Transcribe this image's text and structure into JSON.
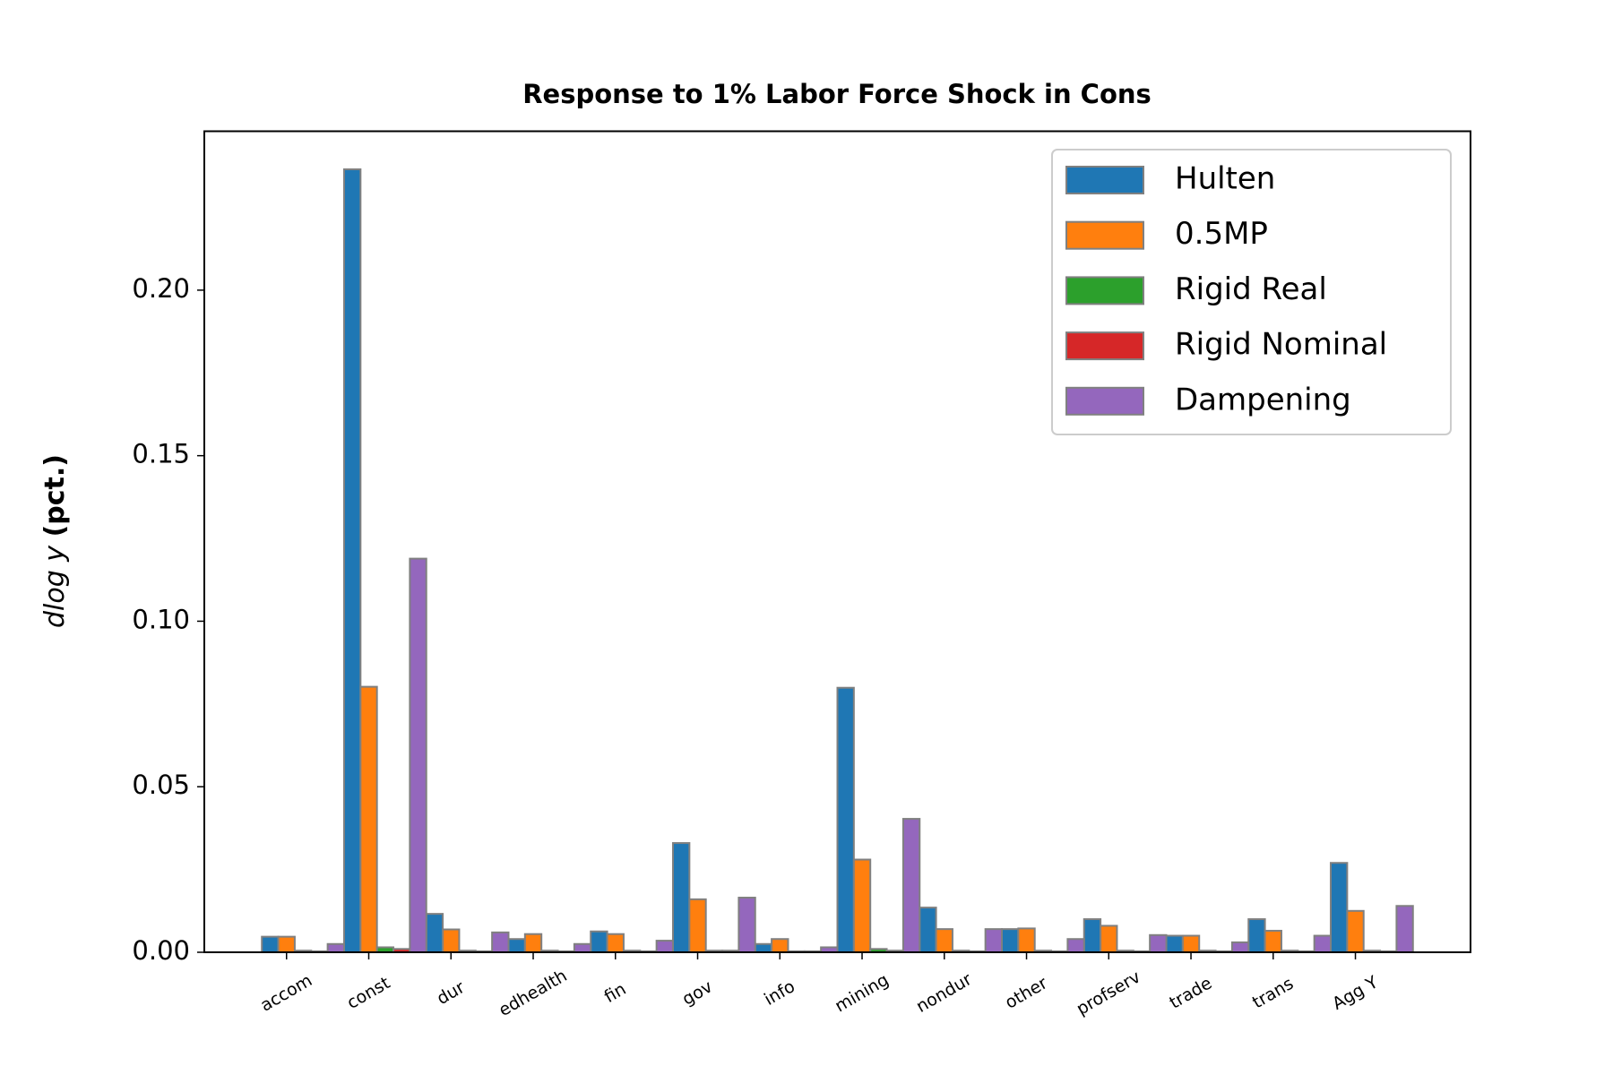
{
  "chart_data": {
    "type": "bar",
    "title": "Response to 1% Labor Force Shock in Cons",
    "ylabel": {
      "math": "dlog y",
      "unit": "(pct.)"
    },
    "categories": [
      "accom",
      "const",
      "dur",
      "edhealth",
      "fin",
      "gov",
      "info",
      "mining",
      "nondur",
      "other",
      "profserv",
      "trade",
      "trans",
      "Agg Y"
    ],
    "series": [
      {
        "name": "Hulten",
        "color": "#1f77b4",
        "values": [
          0.0047,
          0.2365,
          0.0116,
          0.004,
          0.0063,
          0.033,
          0.0025,
          0.0799,
          0.0135,
          0.007,
          0.01,
          0.005,
          0.01,
          0.027
        ]
      },
      {
        "name": "0.5MP",
        "color": "#ff7f0e",
        "values": [
          0.0047,
          0.0802,
          0.0069,
          0.0055,
          0.0055,
          0.016,
          0.004,
          0.028,
          0.007,
          0.0072,
          0.008,
          0.005,
          0.0065,
          0.0125
        ]
      },
      {
        "name": "Rigid Real",
        "color": "#2ca02c",
        "values": [
          0.0005,
          0.0015,
          0.0005,
          0.0005,
          0.0005,
          0.0005,
          0.0003,
          0.001,
          0.0005,
          0.0005,
          0.0005,
          0.0005,
          0.0005,
          0.0005
        ]
      },
      {
        "name": "Rigid Nominal",
        "color": "#d62728",
        "values": [
          0.0003,
          0.001,
          0.0003,
          0.0003,
          0.0003,
          0.0005,
          0.0003,
          0.0005,
          0.0003,
          0.0003,
          0.0003,
          0.0003,
          0.0003,
          0.0003
        ]
      },
      {
        "name": "Dampening",
        "color": "#9467bd",
        "values": [
          0.0025,
          0.1189,
          0.006,
          0.0025,
          0.0035,
          0.0165,
          0.0015,
          0.0403,
          0.007,
          0.004,
          0.0052,
          0.003,
          0.005,
          0.014
        ]
      }
    ],
    "ylim": [
      0,
      0.248
    ],
    "yticks": [
      {
        "value": 0,
        "label": "0.00"
      },
      {
        "value": 0.05,
        "label": "0.05"
      },
      {
        "value": 0.1,
        "label": "0.10"
      },
      {
        "value": 0.15,
        "label": "0.15"
      },
      {
        "value": 0.2,
        "label": "0.20"
      }
    ],
    "legend": "upper right"
  }
}
